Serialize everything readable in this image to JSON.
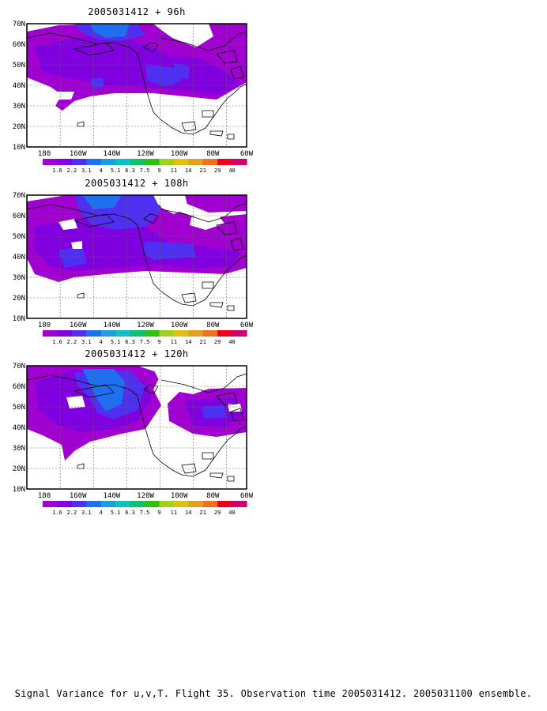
{
  "panels": [
    {
      "title": "2005031412 + 96h"
    },
    {
      "title": "2005031412 + 108h"
    },
    {
      "title": "2005031412 + 120h"
    }
  ],
  "axes": {
    "lat_labels": [
      "70N",
      "60N",
      "50N",
      "40N",
      "30N",
      "20N",
      "10N"
    ],
    "lon_labels": [
      "180",
      "160W",
      "140W",
      "120W",
      "100W",
      "80W",
      "60W"
    ]
  },
  "legend": {
    "labels": [
      "1.6",
      "2.2",
      "3.1",
      "4",
      "5.1",
      "6.3",
      "7.5",
      "9",
      "11",
      "14",
      "21",
      "29",
      "40"
    ],
    "colors": [
      "#a000d0",
      "#8000e0",
      "#5030f0",
      "#1e70f0",
      "#1aa0e0",
      "#10c0c0",
      "#10c070",
      "#30c010",
      "#a0d020",
      "#e0c010",
      "#e0a020",
      "#f07020",
      "#f00020",
      "#d00070"
    ]
  },
  "caption": "Signal Variance for u,v,T. Flight 35. Observation time 2005031412. 2005031100 ensemble."
}
